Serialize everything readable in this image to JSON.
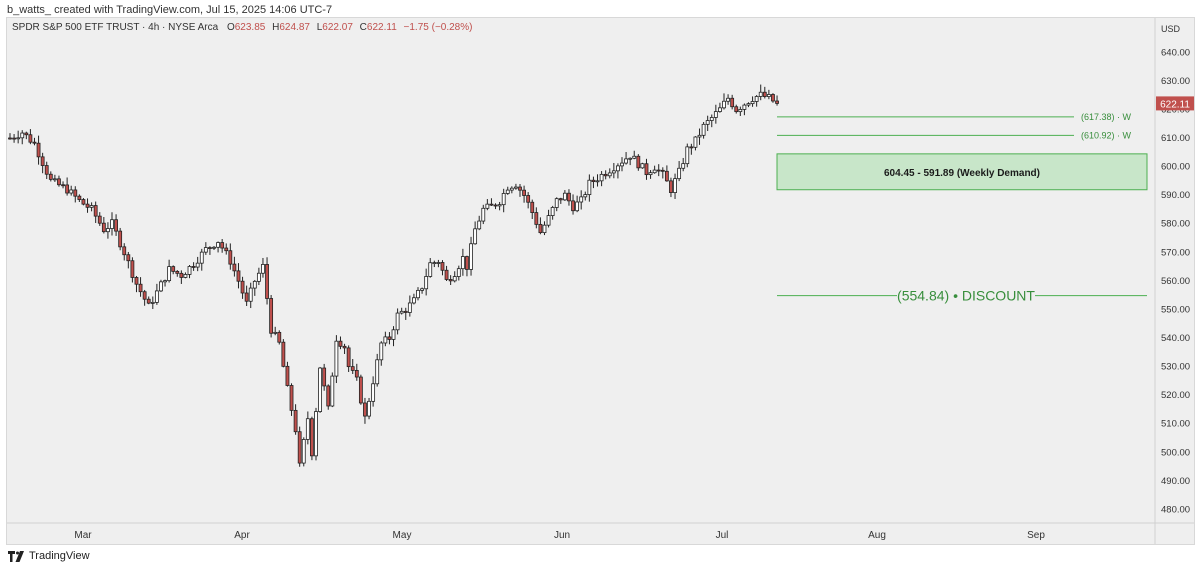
{
  "header": {
    "credit": "b_watts_ created with TradingView.com, Jul 15, 2025 14:06 UTC-7",
    "symbol": "SPDR S&P 500 ETF TRUST · 4h · NYSE Arca",
    "o_label": "O",
    "o_val": "623.85",
    "h_label": "H",
    "h_val": "624.87",
    "l_label": "L",
    "l_val": "622.07",
    "c_label": "C",
    "c_val": "622.11",
    "change": "−1.75 (−0.28%)"
  },
  "price_axis": {
    "currency": "USD",
    "ticks": [
      "640.00",
      "630.00",
      "620.00",
      "610.00",
      "600.00",
      "590.00",
      "580.00",
      "570.00",
      "560.00",
      "550.00",
      "540.00",
      "530.00",
      "520.00",
      "510.00",
      "500.00",
      "490.00",
      "480.00"
    ],
    "last_price": "622.11"
  },
  "time_axis": {
    "ticks": [
      "Mar",
      "Apr",
      "May",
      "Jun",
      "Jul",
      "Aug",
      "Sep"
    ]
  },
  "annotations": {
    "level1": "(617.38) · W",
    "level2": "(610.92) · W",
    "zone": "604.45 - 591.89 (Weekly Demand)",
    "discount": "(554.84) • DISCOUNT"
  },
  "footer": {
    "brand": "TradingView"
  },
  "colors": {
    "up": "#ffffff",
    "down": "#c0504d",
    "wick": "#222222",
    "zone_fill": "#c8e6c9",
    "line": "#4caf50",
    "discount_text": "#388e3c",
    "last_price_bg": "#c0504d"
  },
  "chart_data": {
    "type": "candlestick",
    "title": "SPDR S&P 500 ETF TRUST · 4h · NYSE Arca",
    "xlabel": "",
    "ylabel": "USD",
    "ylim": [
      477,
      645
    ],
    "x_ticks": [
      "Mar",
      "Apr",
      "May",
      "Jun",
      "Jul",
      "Aug",
      "Sep"
    ],
    "levels": [
      {
        "label": "(617.38) · W",
        "value": 617.38
      },
      {
        "label": "(610.92) · W",
        "value": 610.92
      },
      {
        "label": "(554.84) • DISCOUNT",
        "value": 554.84
      }
    ],
    "zone": {
      "label": "604.45 - 591.89 (Weekly Demand)",
      "from": 604.45,
      "to": 591.89
    },
    "last": 622.11,
    "path_anchors": [
      {
        "t": 0,
        "v": 610
      },
      {
        "t": 3,
        "v": 612
      },
      {
        "t": 6,
        "v": 608
      },
      {
        "t": 10,
        "v": 595
      },
      {
        "t": 14,
        "v": 592
      },
      {
        "t": 17,
        "v": 588
      },
      {
        "t": 20,
        "v": 585
      },
      {
        "t": 23,
        "v": 578
      },
      {
        "t": 25,
        "v": 580
      },
      {
        "t": 28,
        "v": 570
      },
      {
        "t": 31,
        "v": 559
      },
      {
        "t": 34,
        "v": 551
      },
      {
        "t": 36,
        "v": 556
      },
      {
        "t": 39,
        "v": 564
      },
      {
        "t": 42,
        "v": 562
      },
      {
        "t": 45,
        "v": 566
      },
      {
        "t": 48,
        "v": 571
      },
      {
        "t": 51,
        "v": 574
      },
      {
        "t": 54,
        "v": 567
      },
      {
        "t": 56,
        "v": 560
      },
      {
        "t": 58,
        "v": 552
      },
      {
        "t": 60,
        "v": 560
      },
      {
        "t": 62,
        "v": 565
      },
      {
        "t": 64,
        "v": 543
      },
      {
        "t": 66,
        "v": 538
      },
      {
        "t": 68,
        "v": 522
      },
      {
        "t": 70,
        "v": 508
      },
      {
        "t": 71,
        "v": 495
      },
      {
        "t": 73,
        "v": 512
      },
      {
        "t": 74,
        "v": 500
      },
      {
        "t": 76,
        "v": 530
      },
      {
        "t": 78,
        "v": 515
      },
      {
        "t": 80,
        "v": 540
      },
      {
        "t": 82,
        "v": 537
      },
      {
        "t": 83,
        "v": 530
      },
      {
        "t": 85,
        "v": 525
      },
      {
        "t": 87,
        "v": 512
      },
      {
        "t": 89,
        "v": 525
      },
      {
        "t": 91,
        "v": 538
      },
      {
        "t": 93,
        "v": 540
      },
      {
        "t": 95,
        "v": 548
      },
      {
        "t": 97,
        "v": 550
      },
      {
        "t": 99,
        "v": 553
      },
      {
        "t": 101,
        "v": 558
      },
      {
        "t": 103,
        "v": 566
      },
      {
        "t": 105,
        "v": 567
      },
      {
        "t": 107,
        "v": 560
      },
      {
        "t": 109,
        "v": 563
      },
      {
        "t": 111,
        "v": 568
      },
      {
        "t": 112,
        "v": 565
      },
      {
        "t": 114,
        "v": 578
      },
      {
        "t": 116,
        "v": 585
      },
      {
        "t": 118,
        "v": 586
      },
      {
        "t": 120,
        "v": 588
      },
      {
        "t": 122,
        "v": 593
      },
      {
        "t": 124,
        "v": 594
      },
      {
        "t": 126,
        "v": 590
      },
      {
        "t": 128,
        "v": 584
      },
      {
        "t": 130,
        "v": 577
      },
      {
        "t": 132,
        "v": 582
      },
      {
        "t": 134,
        "v": 588
      },
      {
        "t": 136,
        "v": 590
      },
      {
        "t": 138,
        "v": 586
      },
      {
        "t": 140,
        "v": 588
      },
      {
        "t": 142,
        "v": 594
      },
      {
        "t": 144,
        "v": 596
      },
      {
        "t": 146,
        "v": 598
      },
      {
        "t": 148,
        "v": 600
      },
      {
        "t": 150,
        "v": 602
      },
      {
        "t": 152,
        "v": 604
      },
      {
        "t": 154,
        "v": 601
      },
      {
        "t": 156,
        "v": 598
      },
      {
        "t": 158,
        "v": 600
      },
      {
        "t": 160,
        "v": 597
      },
      {
        "t": 162,
        "v": 592
      },
      {
        "t": 164,
        "v": 598
      },
      {
        "t": 166,
        "v": 606
      },
      {
        "t": 168,
        "v": 609
      },
      {
        "t": 170,
        "v": 614
      },
      {
        "t": 172,
        "v": 617
      },
      {
        "t": 174,
        "v": 620
      },
      {
        "t": 176,
        "v": 624
      },
      {
        "t": 178,
        "v": 620
      },
      {
        "t": 180,
        "v": 622
      },
      {
        "t": 182,
        "v": 624
      },
      {
        "t": 184,
        "v": 625
      },
      {
        "t": 186,
        "v": 624
      },
      {
        "t": 188,
        "v": 622
      }
    ]
  }
}
